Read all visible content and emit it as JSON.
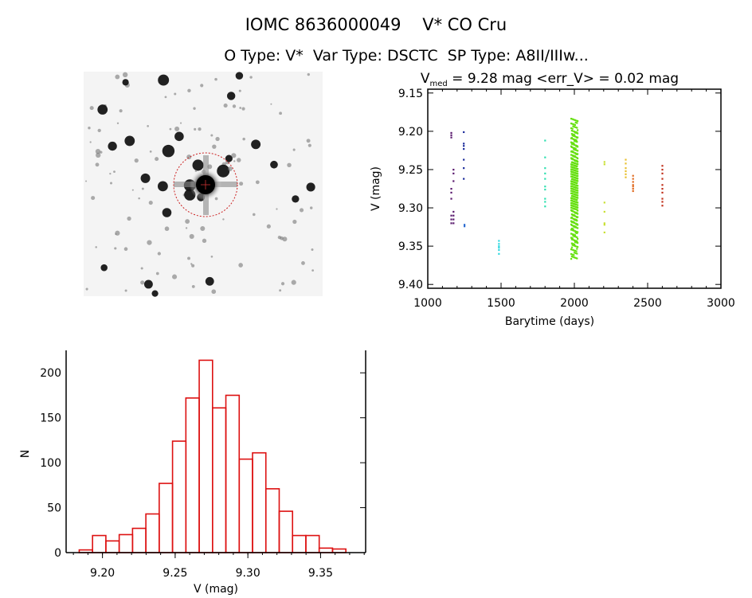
{
  "title": "IOMC 8636000049    V* CO Cru",
  "subtitle": "O Type: V*  Var Type: DSCTC  SP Type: A8II/IIIw...",
  "chart_data": [
    {
      "type": "scatter",
      "title_prefix": "V",
      "title_sub": "med",
      "title_rest": " = 9.28 mag <err_V> = 0.02 mag",
      "xlabel": "Barytime (days)",
      "ylabel": "V (mag)",
      "xlim": [
        1000,
        3000
      ],
      "ylim": [
        9.405,
        9.145
      ],
      "y_inverted": true,
      "xticks": [
        "1000",
        "1500",
        "2000",
        "2500",
        "3000"
      ],
      "yticks": [
        "9.15",
        "9.20",
        "9.25",
        "9.30",
        "9.35",
        "9.40"
      ],
      "grid": false,
      "groups": [
        {
          "x": 1160,
          "color": "#5a1a6e",
          "y": [
            9.202,
            9.205,
            9.208,
            9.275,
            9.28,
            9.288,
            9.31,
            9.315,
            9.32
          ]
        },
        {
          "x": 1175,
          "color": "#5a1a6e",
          "y": [
            9.25,
            9.255,
            9.265,
            9.305,
            9.31,
            9.315,
            9.32
          ]
        },
        {
          "x": 1245,
          "color": "#1a2a9a",
          "y": [
            9.201,
            9.216,
            9.219,
            9.223,
            9.237,
            9.248,
            9.262
          ]
        },
        {
          "x": 1250,
          "color": "#2a6ad0",
          "y": [
            9.322,
            9.324
          ]
        },
        {
          "x": 1485,
          "color": "#30d8e0",
          "y": [
            9.343,
            9.347,
            9.35,
            9.352,
            9.355,
            9.36
          ]
        },
        {
          "x": 1800,
          "color": "#30e0b0",
          "y": [
            9.212,
            9.234,
            9.248,
            9.255,
            9.262,
            9.272,
            9.276,
            9.288,
            9.292,
            9.298
          ]
        },
        {
          "x": 2000,
          "color": "#66e010",
          "y": [
            9.185,
            9.19,
            9.195,
            9.2,
            9.203,
            9.207,
            9.21,
            9.214,
            9.218,
            9.221,
            9.225,
            9.228,
            9.231,
            9.234,
            9.237,
            9.24,
            9.242,
            9.244,
            9.246,
            9.248,
            9.25,
            9.252,
            9.254,
            9.256,
            9.258,
            9.26,
            9.262,
            9.264,
            9.266,
            9.268,
            9.27,
            9.272,
            9.274,
            9.276,
            9.278,
            9.28,
            9.282,
            9.284,
            9.286,
            9.288,
            9.29,
            9.292,
            9.294,
            9.296,
            9.298,
            9.3,
            9.302,
            9.305,
            9.308,
            9.311,
            9.314,
            9.317,
            9.32,
            9.323,
            9.326,
            9.33,
            9.334,
            9.338,
            9.342,
            9.346,
            9.35,
            9.355,
            9.36,
            9.365
          ]
        },
        {
          "x": 2205,
          "color": "#c8e030",
          "y": [
            9.24,
            9.243,
            9.293,
            9.305,
            9.32,
            9.322,
            9.332
          ]
        },
        {
          "x": 2350,
          "color": "#e8c030",
          "y": [
            9.237,
            9.242,
            9.248,
            9.252,
            9.256,
            9.26
          ]
        },
        {
          "x": 2400,
          "color": "#e06a20",
          "y": [
            9.258,
            9.262,
            9.266,
            9.27,
            9.272,
            9.275,
            9.278
          ]
        },
        {
          "x": 2600,
          "color": "#c0301a",
          "y": [
            9.245,
            9.25,
            9.255,
            9.262,
            9.27,
            9.275,
            9.28,
            9.288,
            9.292,
            9.297
          ]
        }
      ]
    },
    {
      "type": "bar",
      "style": "histogram-outline",
      "color": "#dd1111",
      "xlabel": "V (mag)",
      "ylabel": "N",
      "xlim": [
        9.175,
        9.381
      ],
      "ylim": [
        0,
        225
      ],
      "xticks": [
        "9.20",
        "9.25",
        "9.30",
        "9.35"
      ],
      "yticks": [
        "0",
        "50",
        "100",
        "150",
        "200"
      ],
      "bin_start": 9.184,
      "bin_width": 0.00917,
      "values": [
        3,
        19,
        13,
        20,
        27,
        43,
        77,
        124,
        172,
        214,
        161,
        175,
        104,
        111,
        71,
        46,
        19,
        19,
        5,
        4
      ]
    }
  ],
  "finder_image": {
    "description_colors": {
      "circle": "#cc2222"
    }
  }
}
